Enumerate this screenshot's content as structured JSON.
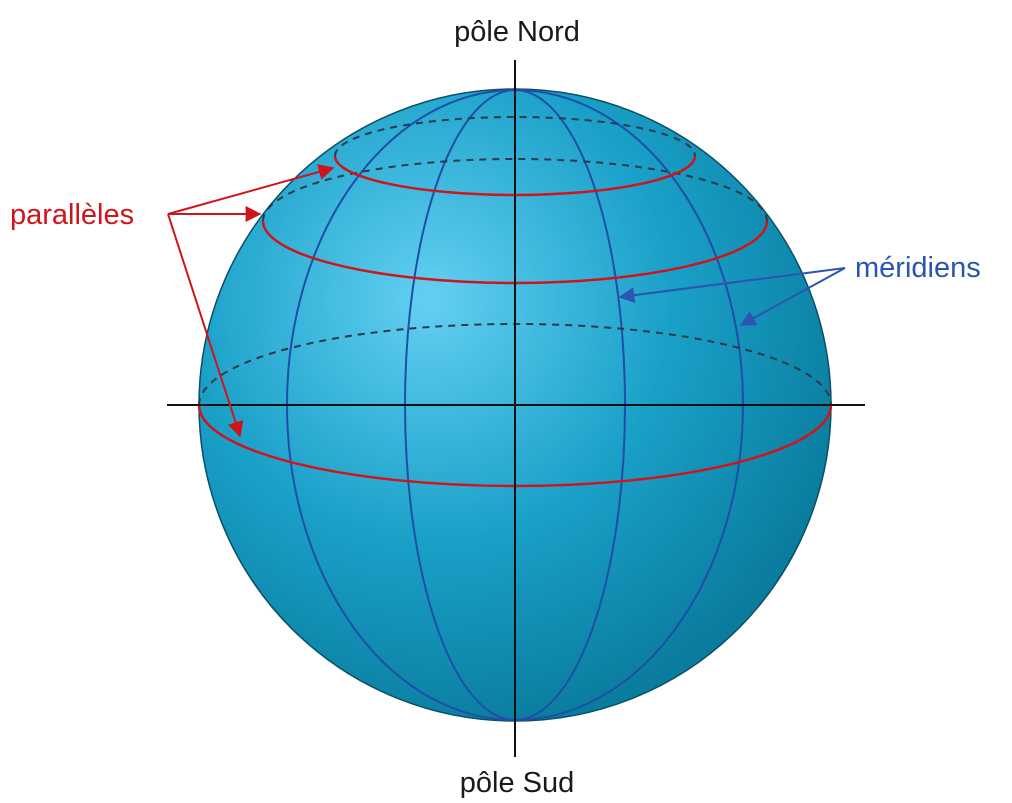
{
  "labels": {
    "north_pole": "pôle Nord",
    "south_pole": "pôle Sud",
    "parallels": "parallèles",
    "meridians": "méridiens"
  }
}
